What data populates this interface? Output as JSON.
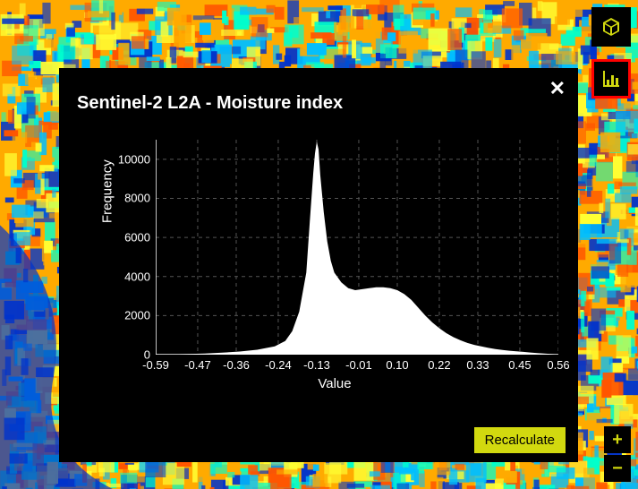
{
  "panel": {
    "title": "Sentinel-2 L2A - Moisture index",
    "close_symbol": "✕",
    "recalculate_label": "Recalculate"
  },
  "tools": {
    "cube_name": "3d-view",
    "chart_name": "histogram-tool",
    "zoom_in": "+",
    "zoom_out": "−"
  },
  "colors": {
    "panel_bg": "#000000",
    "accent": "#d2d90f",
    "text": "#ffffff",
    "grid": "#555555",
    "highlight_border": "#ff0000",
    "hist_fill": "#ffffff",
    "map_palette": [
      "#0033cc",
      "#00bfff",
      "#00ffcc",
      "#ffff33",
      "#ffaa00",
      "#ff5500"
    ]
  },
  "chart": {
    "type": "histogram",
    "xlabel": "Value",
    "ylabel": "Frequency",
    "xlim": [
      -0.59,
      0.56
    ],
    "ylim": [
      0,
      11000
    ],
    "xticks": [
      -0.59,
      -0.47,
      -0.36,
      -0.24,
      -0.13,
      -0.01,
      0.1,
      0.22,
      0.33,
      0.45,
      0.56
    ],
    "yticks": [
      0,
      2000,
      4000,
      6000,
      8000,
      10000
    ],
    "ytick_step": 2000,
    "title_fontsize": 20,
    "label_fontsize": 15,
    "tick_fontsize": 13,
    "grid_dash": "4 4",
    "fill_color": "#ffffff",
    "background_color": "#000000",
    "grid_color": "#555555",
    "data": [
      {
        "x": -0.59,
        "y": 0
      },
      {
        "x": -0.55,
        "y": 10
      },
      {
        "x": -0.5,
        "y": 30
      },
      {
        "x": -0.45,
        "y": 60
      },
      {
        "x": -0.4,
        "y": 100
      },
      {
        "x": -0.35,
        "y": 160
      },
      {
        "x": -0.3,
        "y": 250
      },
      {
        "x": -0.25,
        "y": 420
      },
      {
        "x": -0.22,
        "y": 700
      },
      {
        "x": -0.2,
        "y": 1200
      },
      {
        "x": -0.18,
        "y": 2200
      },
      {
        "x": -0.16,
        "y": 4200
      },
      {
        "x": -0.15,
        "y": 6800
      },
      {
        "x": -0.14,
        "y": 9300
      },
      {
        "x": -0.135,
        "y": 10300
      },
      {
        "x": -0.13,
        "y": 10900
      },
      {
        "x": -0.125,
        "y": 10500
      },
      {
        "x": -0.12,
        "y": 9200
      },
      {
        "x": -0.11,
        "y": 7300
      },
      {
        "x": -0.1,
        "y": 5800
      },
      {
        "x": -0.09,
        "y": 4800
      },
      {
        "x": -0.08,
        "y": 4200
      },
      {
        "x": -0.06,
        "y": 3700
      },
      {
        "x": -0.04,
        "y": 3400
      },
      {
        "x": -0.02,
        "y": 3300
      },
      {
        "x": 0.0,
        "y": 3350
      },
      {
        "x": 0.02,
        "y": 3400
      },
      {
        "x": 0.04,
        "y": 3450
      },
      {
        "x": 0.06,
        "y": 3450
      },
      {
        "x": 0.08,
        "y": 3400
      },
      {
        "x": 0.1,
        "y": 3300
      },
      {
        "x": 0.12,
        "y": 3100
      },
      {
        "x": 0.14,
        "y": 2800
      },
      {
        "x": 0.16,
        "y": 2400
      },
      {
        "x": 0.18,
        "y": 2000
      },
      {
        "x": 0.2,
        "y": 1650
      },
      {
        "x": 0.22,
        "y": 1350
      },
      {
        "x": 0.24,
        "y": 1100
      },
      {
        "x": 0.26,
        "y": 900
      },
      {
        "x": 0.28,
        "y": 740
      },
      {
        "x": 0.3,
        "y": 600
      },
      {
        "x": 0.32,
        "y": 500
      },
      {
        "x": 0.34,
        "y": 420
      },
      {
        "x": 0.36,
        "y": 350
      },
      {
        "x": 0.38,
        "y": 290
      },
      {
        "x": 0.4,
        "y": 240
      },
      {
        "x": 0.42,
        "y": 200
      },
      {
        "x": 0.44,
        "y": 170
      },
      {
        "x": 0.46,
        "y": 140
      },
      {
        "x": 0.48,
        "y": 110
      },
      {
        "x": 0.5,
        "y": 80
      },
      {
        "x": 0.52,
        "y": 55
      },
      {
        "x": 0.54,
        "y": 30
      },
      {
        "x": 0.56,
        "y": 10
      }
    ]
  }
}
